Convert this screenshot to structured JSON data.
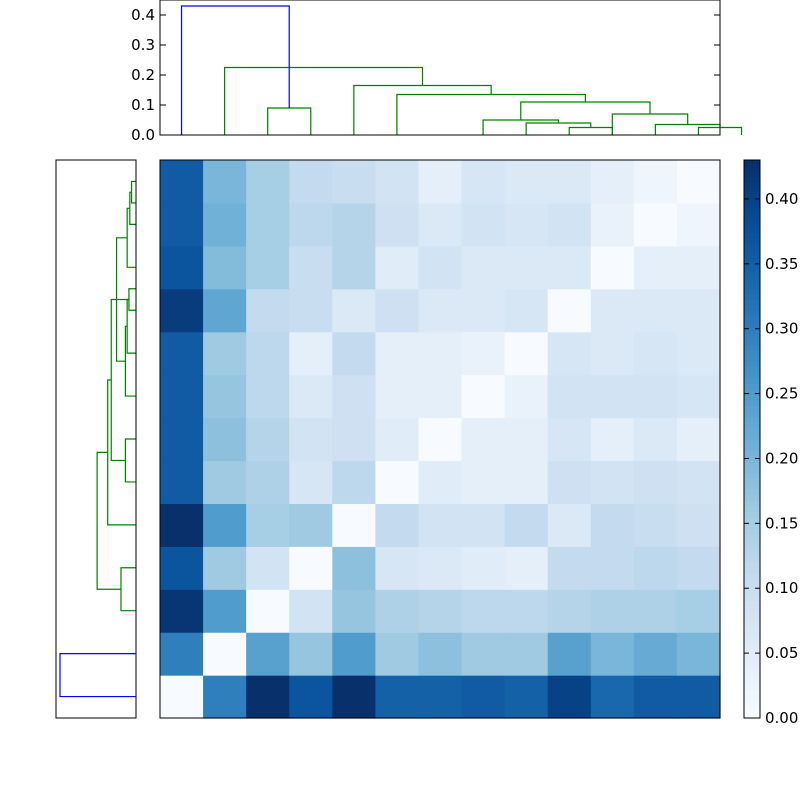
{
  "chart_data": {
    "type": "heatmap",
    "title": "",
    "xlabel": "",
    "ylabel": "",
    "n": 13,
    "colormap": {
      "name": "Blues",
      "stops": [
        "#f7fbff",
        "#deebf7",
        "#c6dbef",
        "#9ecae1",
        "#6baed6",
        "#4292c6",
        "#2171b5",
        "#08519c",
        "#08306b"
      ]
    },
    "vmin": 0.0,
    "vmax": 0.43,
    "matrix": [
      [
        0.0,
        0.3,
        0.43,
        0.37,
        0.43,
        0.35,
        0.35,
        0.36,
        0.35,
        0.4,
        0.34,
        0.36,
        0.36
      ],
      [
        0.3,
        0.0,
        0.24,
        0.17,
        0.25,
        0.16,
        0.18,
        0.16,
        0.16,
        0.24,
        0.2,
        0.22,
        0.2
      ],
      [
        0.42,
        0.25,
        0.0,
        0.08,
        0.17,
        0.14,
        0.13,
        0.12,
        0.12,
        0.13,
        0.14,
        0.14,
        0.15
      ],
      [
        0.37,
        0.16,
        0.08,
        0.0,
        0.18,
        0.07,
        0.06,
        0.05,
        0.04,
        0.11,
        0.11,
        0.12,
        0.11
      ],
      [
        0.43,
        0.25,
        0.15,
        0.16,
        0.0,
        0.11,
        0.08,
        0.08,
        0.11,
        0.06,
        0.11,
        0.1,
        0.09
      ],
      [
        0.36,
        0.16,
        0.14,
        0.07,
        0.12,
        0.0,
        0.05,
        0.04,
        0.04,
        0.09,
        0.08,
        0.09,
        0.08
      ],
      [
        0.36,
        0.18,
        0.13,
        0.08,
        0.09,
        0.05,
        0.0,
        0.04,
        0.04,
        0.07,
        0.04,
        0.06,
        0.04
      ],
      [
        0.36,
        0.17,
        0.12,
        0.06,
        0.09,
        0.04,
        0.04,
        0.0,
        0.03,
        0.08,
        0.08,
        0.08,
        0.07
      ],
      [
        0.36,
        0.16,
        0.12,
        0.04,
        0.11,
        0.04,
        0.04,
        0.03,
        0.0,
        0.07,
        0.06,
        0.07,
        0.06
      ],
      [
        0.41,
        0.23,
        0.11,
        0.1,
        0.06,
        0.09,
        0.06,
        0.06,
        0.07,
        0.0,
        0.06,
        0.06,
        0.06
      ],
      [
        0.37,
        0.19,
        0.15,
        0.1,
        0.13,
        0.05,
        0.08,
        0.06,
        0.06,
        0.06,
        0.0,
        0.04,
        0.04
      ],
      [
        0.36,
        0.21,
        0.15,
        0.12,
        0.13,
        0.09,
        0.06,
        0.08,
        0.07,
        0.08,
        0.03,
        0.0,
        0.02
      ],
      [
        0.36,
        0.2,
        0.15,
        0.11,
        0.1,
        0.08,
        0.04,
        0.07,
        0.06,
        0.06,
        0.04,
        0.02,
        0.0
      ]
    ],
    "colorbar": {
      "ticks": [
        "0.00",
        "0.05",
        "0.10",
        "0.15",
        "0.20",
        "0.25",
        "0.30",
        "0.35",
        "0.40"
      ],
      "tick_values": [
        0.0,
        0.05,
        0.1,
        0.15,
        0.2,
        0.25,
        0.3,
        0.35,
        0.4
      ]
    },
    "top_dendrogram": {
      "ylim": [
        0.0,
        0.45
      ],
      "yticks": [
        "0.0",
        "0.1",
        "0.2",
        "0.3",
        "0.4"
      ],
      "ytick_values": [
        0.0,
        0.1,
        0.2,
        0.3,
        0.4
      ],
      "links": [
        {
          "left": 2,
          "right": 3,
          "height": 0.09,
          "color": "#008000"
        },
        {
          "left": 9,
          "right": 10,
          "height": 0.025,
          "color": "#008000"
        },
        {
          "left": 8,
          "right": 9.5,
          "height": 0.04,
          "color": "#008000"
        },
        {
          "left": 7,
          "right": 8.75,
          "height": 0.05,
          "color": "#008000"
        },
        {
          "left": 12,
          "right": 13,
          "height": 0.025,
          "color": "#008000"
        },
        {
          "left": 11,
          "right": 12.5,
          "height": 0.035,
          "color": "#008000"
        },
        {
          "left": 10,
          "right": 11.75,
          "height": 0.07,
          "color": "#008000"
        },
        {
          "left": 7.875,
          "right": 10.875,
          "height": 0.11,
          "color": "#008000"
        },
        {
          "left": 5,
          "right": 9.375,
          "height": 0.135,
          "color": "#008000"
        },
        {
          "left": 4,
          "right": 7.1875,
          "height": 0.165,
          "color": "#008000"
        },
        {
          "left": 1,
          "right": 5.59375,
          "height": 0.225,
          "color": "#008000"
        },
        {
          "left": 0,
          "right": 2.5,
          "height": 0.43,
          "color": "#0000ff"
        }
      ]
    },
    "left_dendrogram": {
      "links": [
        {
          "a": 12,
          "b": 11.5,
          "depth": 0.025,
          "color": "#008000"
        },
        {
          "a": 11.75,
          "b": 11,
          "depth": 0.035,
          "color": "#008000"
        },
        {
          "a": 11.375,
          "b": 10,
          "depth": 0.05,
          "color": "#008000"
        },
        {
          "a": 9.5,
          "b": 9,
          "depth": 0.04,
          "color": "#008000"
        },
        {
          "a": 9.25,
          "b": 8,
          "depth": 0.05,
          "color": "#008000"
        },
        {
          "a": 8.625,
          "b": 7,
          "depth": 0.06,
          "color": "#008000"
        },
        {
          "a": 10.6875,
          "b": 7.8125,
          "depth": 0.11,
          "color": "#008000"
        },
        {
          "a": 6,
          "b": 5,
          "depth": 0.06,
          "color": "#008000"
        },
        {
          "a": 9.25,
          "b": 5.5,
          "depth": 0.14,
          "color": "#008000"
        },
        {
          "a": 7.375,
          "b": 4,
          "depth": 0.16,
          "color": "#008000"
        },
        {
          "a": 3,
          "b": 2,
          "depth": 0.085,
          "color": "#008000"
        },
        {
          "a": 5.6875,
          "b": 2.5,
          "depth": 0.22,
          "color": "#008000"
        },
        {
          "a": 1,
          "b": 0,
          "depth": 0.43,
          "color": "#0000ff"
        }
      ]
    }
  }
}
